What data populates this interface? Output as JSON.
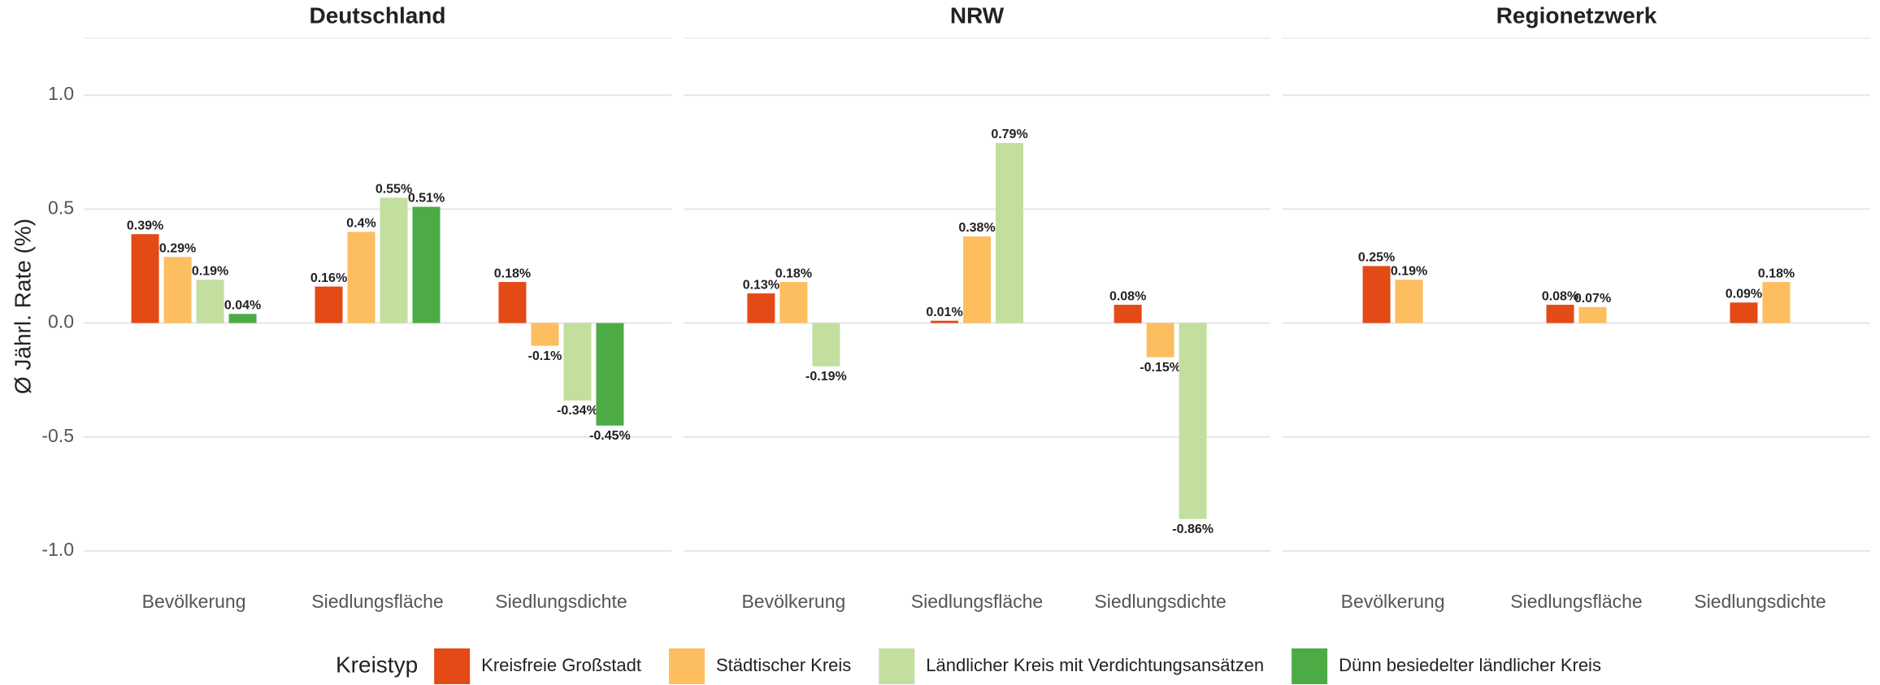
{
  "chart_data": {
    "type": "bar",
    "y_label": "Ø Jährl. Rate (%)",
    "legend_title": "Kreistyp",
    "facets": [
      "Deutschland",
      "NRW",
      "Regionetzwerk"
    ],
    "categories": [
      "Bevölkerung",
      "Siedlungsfläche",
      "Siedlungsdichte"
    ],
    "ylim": [
      -1.1,
      1.25
    ],
    "yticks": [
      {
        "value": -1,
        "label": "-1.0"
      },
      {
        "value": -0.5,
        "label": "-0.5"
      },
      {
        "value": 0,
        "label": "0.0"
      },
      {
        "value": 0.5,
        "label": "0.5"
      },
      {
        "value": 1,
        "label": "1.0"
      }
    ],
    "grid": true,
    "legend": "bottom",
    "series": [
      {
        "name": "Kreisfreie Großstadt",
        "color": "#e34a15",
        "values": [
          [
            0.39,
            0.16,
            0.18
          ],
          [
            0.13,
            0.01,
            0.08
          ],
          [
            0.25,
            0.08,
            0.09
          ]
        ],
        "value_labels": [
          [
            "0.39%",
            "0.16%",
            "0.18%"
          ],
          [
            "0.13%",
            "0.01%",
            "0.08%"
          ],
          [
            "0.25%",
            "0.08%",
            "0.09%"
          ]
        ]
      },
      {
        "name": "Städtischer Kreis",
        "color": "#fdbe5f",
        "values": [
          [
            0.29,
            0.4,
            -0.1
          ],
          [
            0.18,
            0.38,
            -0.15
          ],
          [
            0.19,
            0.07,
            0.18
          ]
        ],
        "value_labels": [
          [
            "0.29%",
            "0.4%",
            "-0.1%"
          ],
          [
            "0.18%",
            "0.38%",
            "-0.15%"
          ],
          [
            "0.19%",
            "0.07%",
            "0.18%"
          ]
        ]
      },
      {
        "name": "Ländlicher Kreis mit Verdichtungsansätzen",
        "color": "#c2df9f",
        "values": [
          [
            0.19,
            0.55,
            -0.34
          ],
          [
            -0.19,
            0.79,
            -0.86
          ],
          [
            null,
            null,
            null
          ]
        ],
        "value_labels": [
          [
            "0.19%",
            "0.55%",
            "-0.34%"
          ],
          [
            "-0.19%",
            "0.79%",
            "-0.86%"
          ],
          [
            null,
            null,
            null
          ]
        ]
      },
      {
        "name": "Dünn besiedelter ländlicher Kreis",
        "color": "#4dab46",
        "values": [
          [
            0.04,
            0.51,
            -0.45
          ],
          [
            null,
            null,
            null
          ],
          [
            null,
            null,
            null
          ]
        ],
        "value_labels": [
          [
            "0.04%",
            "0.51%",
            "-0.45%"
          ],
          [
            null,
            null,
            null
          ],
          [
            null,
            null,
            null
          ]
        ]
      }
    ]
  }
}
